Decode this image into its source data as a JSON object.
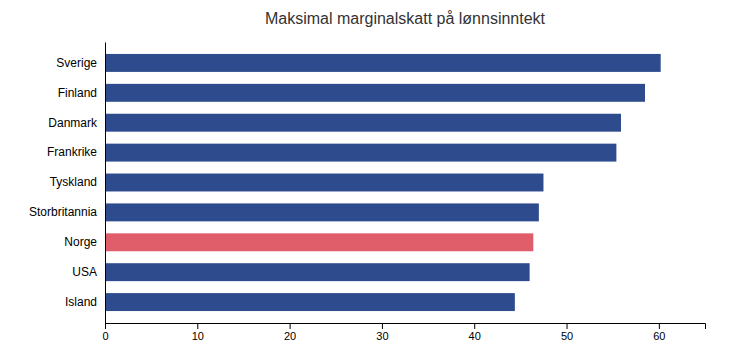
{
  "chart_data": {
    "type": "bar",
    "orientation": "horizontal",
    "title": "Maksimal marginalskatt på lønnsinntekt",
    "categories": [
      "Sverige",
      "Finland",
      "Danmark",
      "Frankrike",
      "Tyskland",
      "Storbritannia",
      "Norge",
      "USA",
      "Island"
    ],
    "values": [
      60.2,
      58.5,
      55.9,
      55.4,
      47.5,
      47.0,
      46.4,
      46.0,
      44.4
    ],
    "colors": [
      "#2E4B8E",
      "#2E4B8E",
      "#2E4B8E",
      "#2E4B8E",
      "#2E4B8E",
      "#2E4B8E",
      "#E05E6A",
      "#2E4B8E",
      "#2E4B8E"
    ],
    "xlim": [
      0,
      65
    ],
    "xticks": [
      0,
      10,
      20,
      30,
      40,
      50,
      60
    ],
    "grid": false
  }
}
